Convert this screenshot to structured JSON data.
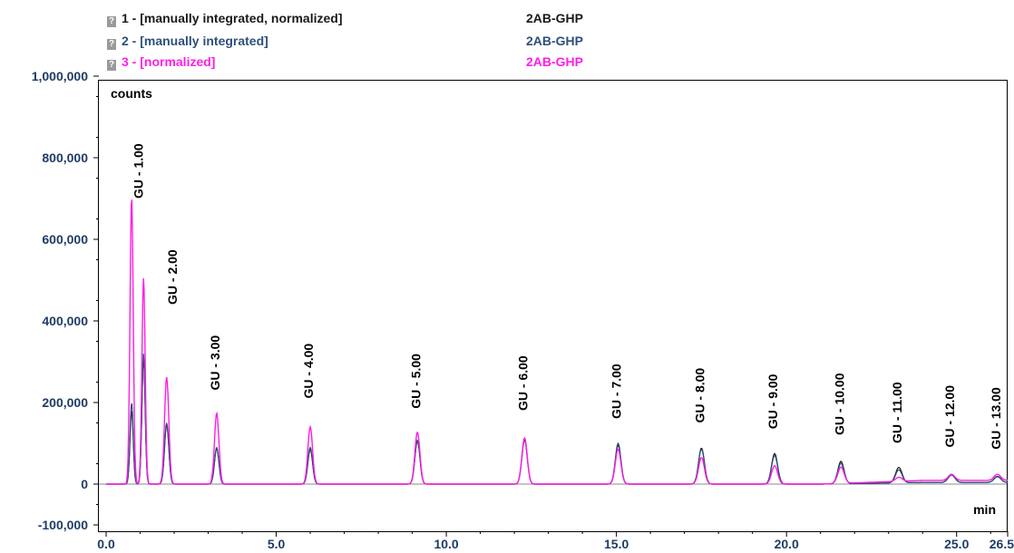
{
  "legend": [
    {
      "label": "1 -  [manually integrated, normalized]",
      "method": "2AB-GHP",
      "color": "#1a1a1a",
      "icon": "?"
    },
    {
      "label": "2 -  [manually integrated]",
      "method": "2AB-GHP",
      "color": "#2e4f7a",
      "icon": "?"
    },
    {
      "label": "3 -  [normalized]",
      "method": "2AB-GHP",
      "color": "#ff1ee6",
      "icon": "?"
    }
  ],
  "chart_data": {
    "type": "line",
    "ylabel": "counts",
    "xlabel": "min",
    "xlim": [
      0,
      26.5
    ],
    "ylim": [
      -100000,
      1000000
    ],
    "x_ticks": [
      0.0,
      5.0,
      10.0,
      15.0,
      20.0,
      25.0,
      26.5
    ],
    "x_tick_labels": [
      "0.0",
      "5.0",
      "10.0",
      "15.0",
      "20.0",
      "25.0",
      "26.5"
    ],
    "y_ticks": [
      -100000,
      0,
      200000,
      400000,
      600000,
      800000,
      1000000
    ],
    "y_tick_labels": [
      "-100,000",
      "0",
      "200,000",
      "400,000",
      "600,000",
      "800,000",
      "1,000,000"
    ],
    "peak_width_min": 0.06,
    "series": [
      {
        "name": "1 -  [manually integrated, normalized]",
        "color": "#1a1a1a",
        "peaks": [
          [
            0.75,
            180000
          ],
          [
            1.1,
            310000
          ],
          [
            1.78,
            145000
          ],
          [
            3.25,
            88000
          ],
          [
            6.0,
            85000
          ],
          [
            9.15,
            105000
          ],
          [
            12.3,
            108000
          ],
          [
            15.05,
            95000
          ],
          [
            17.5,
            88000
          ],
          [
            19.65,
            75000
          ],
          [
            21.6,
            55000
          ],
          [
            23.3,
            38000
          ],
          [
            24.85,
            20000
          ],
          [
            26.2,
            15000
          ]
        ]
      },
      {
        "name": "2 -  [manually integrated]",
        "color": "#2e4f7a",
        "peaks": [
          [
            0.75,
            200000
          ],
          [
            1.1,
            320000
          ],
          [
            1.78,
            150000
          ],
          [
            3.25,
            90000
          ],
          [
            6.0,
            90000
          ],
          [
            9.15,
            108000
          ],
          [
            12.3,
            112000
          ],
          [
            15.05,
            100000
          ],
          [
            17.5,
            85000
          ],
          [
            19.65,
            70000
          ],
          [
            21.6,
            50000
          ],
          [
            23.3,
            32000
          ],
          [
            24.85,
            18000
          ],
          [
            26.2,
            14000
          ]
        ]
      },
      {
        "name": "3 -  [normalized]",
        "color": "#ff1ee6",
        "peaks": [
          [
            0.75,
            705000
          ],
          [
            1.1,
            505000
          ],
          [
            1.78,
            262000
          ],
          [
            3.25,
            174000
          ],
          [
            6.0,
            140000
          ],
          [
            9.15,
            127000
          ],
          [
            12.3,
            113000
          ],
          [
            15.05,
            85000
          ],
          [
            17.5,
            65000
          ],
          [
            19.65,
            45000
          ],
          [
            21.6,
            40000
          ],
          [
            23.3,
            10000
          ],
          [
            24.85,
            15000
          ],
          [
            26.2,
            15000
          ]
        ]
      }
    ],
    "annotations": [
      {
        "text": "GU - 1.00",
        "x": 0.95,
        "y": 700000
      },
      {
        "text": "GU - 2.00",
        "x": 1.95,
        "y": 440000
      },
      {
        "text": "GU - 3.00",
        "x": 3.2,
        "y": 230000
      },
      {
        "text": "GU - 4.00",
        "x": 5.95,
        "y": 210000
      },
      {
        "text": "GU - 5.00",
        "x": 9.1,
        "y": 185000
      },
      {
        "text": "GU - 6.00",
        "x": 12.25,
        "y": 180000
      },
      {
        "text": "GU - 7.00",
        "x": 15.0,
        "y": 160000
      },
      {
        "text": "GU - 8.00",
        "x": 17.45,
        "y": 150000
      },
      {
        "text": "GU - 9.00",
        "x": 19.6,
        "y": 135000
      },
      {
        "text": "GU - 10.00",
        "x": 21.55,
        "y": 120000
      },
      {
        "text": "GU - 11.00",
        "x": 23.25,
        "y": 100000
      },
      {
        "text": "GU - 12.00",
        "x": 24.8,
        "y": 90000
      },
      {
        "text": "GU - 13.00",
        "x": 26.15,
        "y": 85000
      }
    ]
  }
}
